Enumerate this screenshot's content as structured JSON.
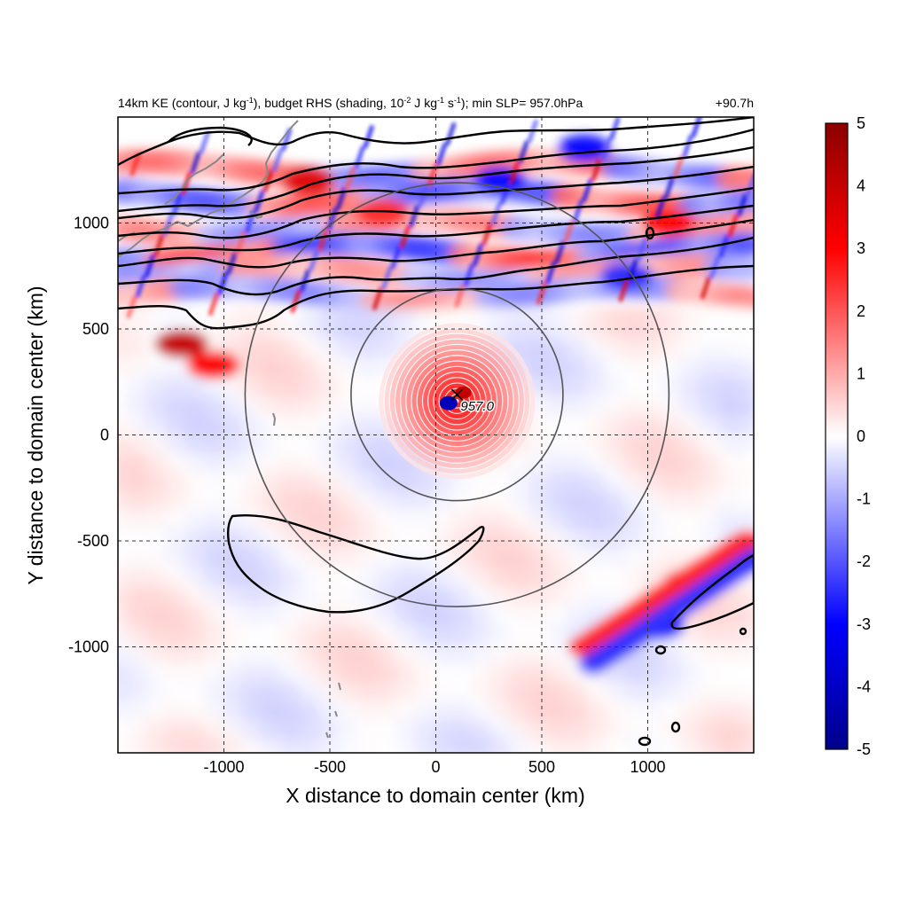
{
  "chart_data": {
    "type": "heatmap",
    "title": {
      "parts": [
        {
          "t": "14km KE (contour, J kg",
          "s": "normal"
        },
        {
          "t": "-1",
          "s": "sup"
        },
        {
          "t": "), budget RHS (shading, 10",
          "s": "normal"
        },
        {
          "t": "-2",
          "s": "sup"
        },
        {
          "t": " J kg",
          "s": "normal"
        },
        {
          "t": "-1",
          "s": "sup"
        },
        {
          "t": " s",
          "s": "normal"
        },
        {
          "t": "-1",
          "s": "sup"
        },
        {
          "t": "); min SLP= 957.0hPa",
          "s": "normal"
        }
      ]
    },
    "time_label": "+90.7h",
    "xlabel": "X distance to domain center (km)",
    "ylabel": "Y distance to domain center (km)",
    "xlim": [
      -1500,
      1500
    ],
    "ylim": [
      -1500,
      1500
    ],
    "xticks": [
      -1000,
      -500,
      0,
      500,
      1000
    ],
    "yticks": [
      -1000,
      -500,
      0,
      500,
      1000
    ],
    "grid": "dashed",
    "colorbar": {
      "min": -5,
      "max": 5,
      "ticks": [
        5,
        4,
        3,
        2,
        1,
        0,
        -1,
        -2,
        -3,
        -4,
        -5
      ],
      "colors": [
        "#00008b",
        "#0000ff",
        "#ffffff",
        "#ff0000",
        "#8b0000"
      ]
    },
    "storm_center": {
      "x": 100,
      "y": 190,
      "label": "957.0"
    },
    "range_circles": [
      {
        "cx": 100,
        "cy": 190,
        "r": 500
      },
      {
        "cx": 100,
        "cy": 190,
        "r": 1000
      }
    ],
    "shading_features": [
      {
        "x": -600,
        "y": 1200,
        "amp": 3.5
      },
      {
        "x": -250,
        "y": 1050,
        "amp": 2.5
      },
      {
        "x": 300,
        "y": 1200,
        "amp": -3.0
      },
      {
        "x": 700,
        "y": 1350,
        "amp": -3.0
      },
      {
        "x": 1100,
        "y": 1000,
        "amp": 3.0
      },
      {
        "x": 900,
        "y": 750,
        "amp": -2.5
      },
      {
        "x": -1200,
        "y": 430,
        "amp": 4.0
      },
      {
        "x": -1050,
        "y": 330,
        "amp": 3.0
      },
      {
        "x": 1200,
        "y": -700,
        "amp": 3.5
      },
      {
        "x": 1050,
        "y": -900,
        "amp": -3.0
      }
    ]
  }
}
